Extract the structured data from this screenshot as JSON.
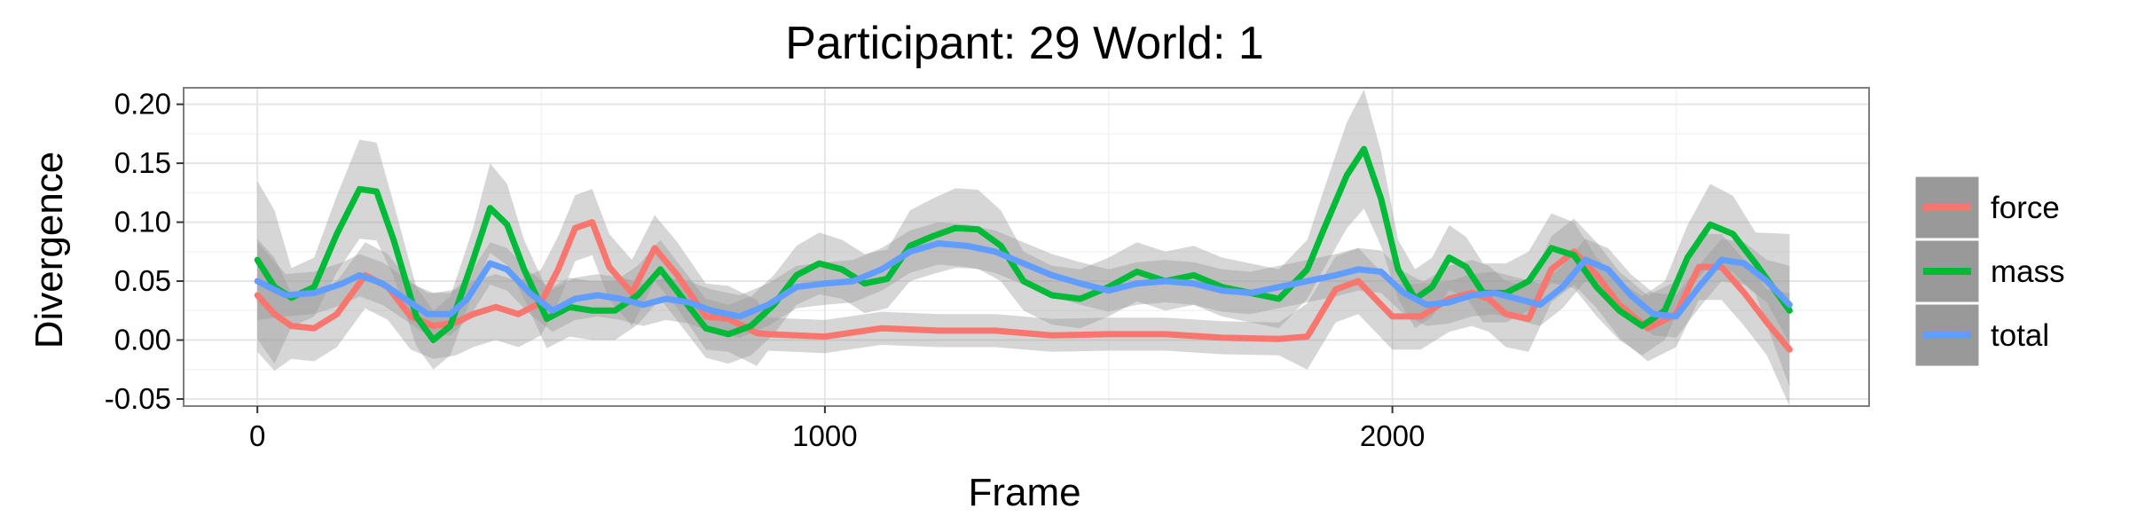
{
  "chart_data": {
    "type": "line",
    "title": "Participant: 29 World: 1",
    "xlabel": "Frame",
    "ylabel": "Divergence",
    "xlim": [
      -130,
      2840
    ],
    "ylim": [
      -0.056,
      0.214
    ],
    "xticks": [
      0,
      1000,
      2000
    ],
    "xtick_labels": [
      "0",
      "1000",
      "2000"
    ],
    "yticks": [
      -0.05,
      0.0,
      0.05,
      0.1,
      0.15,
      0.2
    ],
    "ytick_labels": [
      "-0.05",
      "0.00",
      "0.05",
      "0.10",
      "0.15",
      "0.20"
    ],
    "grid": true,
    "legend_position": "right",
    "confidence_band": true,
    "series": [
      {
        "name": "force",
        "color": "#F8766D",
        "x": [
          0,
          30,
          60,
          100,
          140,
          190,
          230,
          270,
          310,
          350,
          380,
          420,
          460,
          500,
          530,
          560,
          590,
          620,
          660,
          700,
          740,
          790,
          830,
          880,
          900,
          1000,
          1100,
          1200,
          1300,
          1400,
          1500,
          1600,
          1700,
          1800,
          1850,
          1900,
          1940,
          1980,
          2000,
          2050,
          2100,
          2140,
          2170,
          2200,
          2240,
          2280,
          2320,
          2360,
          2400,
          2450,
          2500,
          2540,
          2580,
          2620,
          2660,
          2700
        ],
        "y": [
          0.038,
          0.022,
          0.012,
          0.01,
          0.022,
          0.055,
          0.045,
          0.02,
          0.012,
          0.015,
          0.022,
          0.028,
          0.022,
          0.032,
          0.06,
          0.095,
          0.1,
          0.062,
          0.04,
          0.078,
          0.055,
          0.02,
          0.018,
          0.006,
          0.005,
          0.003,
          0.01,
          0.008,
          0.008,
          0.004,
          0.005,
          0.005,
          0.002,
          0.001,
          0.003,
          0.043,
          0.05,
          0.03,
          0.02,
          0.02,
          0.035,
          0.04,
          0.035,
          0.022,
          0.018,
          0.06,
          0.075,
          0.055,
          0.03,
          0.01,
          0.022,
          0.062,
          0.062,
          0.04,
          0.015,
          -0.008
        ]
      },
      {
        "name": "mass",
        "color": "#00BA38",
        "x": [
          0,
          30,
          60,
          100,
          140,
          180,
          210,
          240,
          280,
          310,
          340,
          380,
          410,
          440,
          470,
          510,
          550,
          590,
          630,
          670,
          710,
          750,
          790,
          830,
          870,
          910,
          950,
          990,
          1030,
          1070,
          1110,
          1150,
          1190,
          1230,
          1270,
          1310,
          1350,
          1400,
          1450,
          1500,
          1550,
          1600,
          1650,
          1700,
          1750,
          1800,
          1850,
          1880,
          1920,
          1950,
          1980,
          2010,
          2040,
          2070,
          2100,
          2130,
          2160,
          2200,
          2240,
          2280,
          2320,
          2360,
          2400,
          2440,
          2480,
          2520,
          2560,
          2600,
          2640,
          2700
        ],
        "y": [
          0.068,
          0.045,
          0.036,
          0.045,
          0.09,
          0.128,
          0.126,
          0.085,
          0.02,
          0.0,
          0.012,
          0.068,
          0.112,
          0.098,
          0.06,
          0.018,
          0.028,
          0.025,
          0.025,
          0.038,
          0.06,
          0.035,
          0.01,
          0.005,
          0.012,
          0.03,
          0.055,
          0.065,
          0.06,
          0.048,
          0.052,
          0.08,
          0.088,
          0.095,
          0.094,
          0.08,
          0.05,
          0.038,
          0.035,
          0.045,
          0.058,
          0.05,
          0.055,
          0.045,
          0.04,
          0.035,
          0.06,
          0.095,
          0.14,
          0.162,
          0.12,
          0.06,
          0.035,
          0.045,
          0.07,
          0.062,
          0.04,
          0.04,
          0.05,
          0.078,
          0.072,
          0.045,
          0.025,
          0.012,
          0.025,
          0.07,
          0.098,
          0.09,
          0.065,
          0.025
        ]
      },
      {
        "name": "total",
        "color": "#619CFF",
        "x": [
          0,
          50,
          100,
          150,
          180,
          220,
          260,
          300,
          340,
          370,
          410,
          440,
          480,
          520,
          560,
          600,
          640,
          680,
          720,
          760,
          800,
          850,
          900,
          950,
          1000,
          1050,
          1100,
          1150,
          1200,
          1250,
          1300,
          1350,
          1400,
          1450,
          1500,
          1550,
          1600,
          1650,
          1700,
          1750,
          1800,
          1850,
          1900,
          1940,
          1980,
          2020,
          2060,
          2100,
          2140,
          2180,
          2220,
          2260,
          2300,
          2340,
          2380,
          2420,
          2460,
          2500,
          2540,
          2580,
          2620,
          2660,
          2700
        ],
        "y": [
          0.05,
          0.038,
          0.04,
          0.048,
          0.055,
          0.048,
          0.035,
          0.022,
          0.022,
          0.035,
          0.065,
          0.06,
          0.04,
          0.025,
          0.035,
          0.038,
          0.035,
          0.03,
          0.035,
          0.032,
          0.025,
          0.02,
          0.03,
          0.045,
          0.048,
          0.05,
          0.06,
          0.075,
          0.082,
          0.08,
          0.075,
          0.065,
          0.055,
          0.048,
          0.042,
          0.048,
          0.05,
          0.048,
          0.042,
          0.04,
          0.045,
          0.05,
          0.055,
          0.06,
          0.058,
          0.04,
          0.03,
          0.032,
          0.038,
          0.04,
          0.035,
          0.03,
          0.045,
          0.068,
          0.06,
          0.038,
          0.022,
          0.02,
          0.045,
          0.068,
          0.065,
          0.05,
          0.03
        ]
      }
    ]
  }
}
